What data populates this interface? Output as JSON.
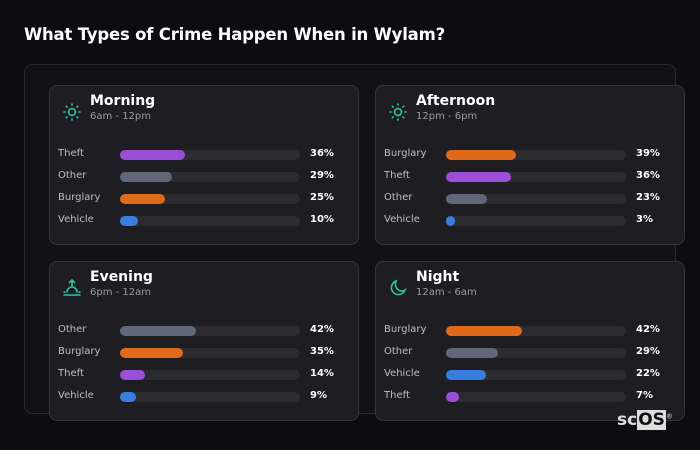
{
  "title": "What Types of Crime Happen When in Wylam?",
  "colors": {
    "Theft": "#9b4fd6",
    "Other": "#5f6878",
    "Burglary": "#e06a1c",
    "Vehicle": "#3a7de0",
    "accent": "#2ec4a0"
  },
  "cards": [
    {
      "name": "Morning",
      "range": "6am - 12pm",
      "icon": "sun-icon",
      "rows": [
        {
          "label": "Theft",
          "value": 36,
          "text": "36%"
        },
        {
          "label": "Other",
          "value": 29,
          "text": "29%"
        },
        {
          "label": "Burglary",
          "value": 25,
          "text": "25%"
        },
        {
          "label": "Vehicle",
          "value": 10,
          "text": "10%"
        }
      ]
    },
    {
      "name": "Afternoon",
      "range": "12pm - 6pm",
      "icon": "sun-icon",
      "rows": [
        {
          "label": "Burglary",
          "value": 39,
          "text": "39%"
        },
        {
          "label": "Theft",
          "value": 36,
          "text": "36%"
        },
        {
          "label": "Other",
          "value": 23,
          "text": "23%"
        },
        {
          "label": "Vehicle",
          "value": 3,
          "text": "3%"
        }
      ]
    },
    {
      "name": "Evening",
      "range": "6pm - 12am",
      "icon": "sunset-icon",
      "rows": [
        {
          "label": "Other",
          "value": 42,
          "text": "42%"
        },
        {
          "label": "Burglary",
          "value": 35,
          "text": "35%"
        },
        {
          "label": "Theft",
          "value": 14,
          "text": "14%"
        },
        {
          "label": "Vehicle",
          "value": 9,
          "text": "9%"
        }
      ]
    },
    {
      "name": "Night",
      "range": "12am - 6am",
      "icon": "moon-icon",
      "rows": [
        {
          "label": "Burglary",
          "value": 42,
          "text": "42%"
        },
        {
          "label": "Other",
          "value": 29,
          "text": "29%"
        },
        {
          "label": "Vehicle",
          "value": 22,
          "text": "22%"
        },
        {
          "label": "Theft",
          "value": 7,
          "text": "7%"
        }
      ]
    }
  ],
  "logo": {
    "a": "sc",
    "b": "OS",
    "mark": "®"
  }
}
